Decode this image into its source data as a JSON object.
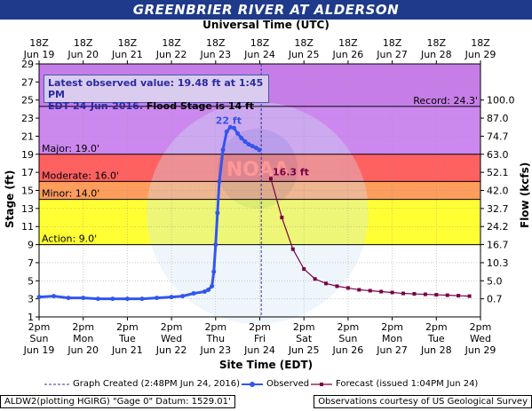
{
  "title": "GREENBRIER RIVER AT ALDERSON",
  "top_axis_title": "Universal Time (UTC)",
  "bottom_axis_title": "Site Time (EDT)",
  "left_axis_title": "Stage (ft)",
  "right_axis_title": "Flow (kcfs)",
  "info": {
    "line1": "Latest observed value: 19.48 ft at 1:45 PM",
    "line2a": "EDT 24-Jun-2016.",
    "line2b": "Flood Stage is 14 ft"
  },
  "legend": {
    "graph_created": "Graph Created (2:48PM Jun 24, 2016)",
    "observed": "Observed",
    "forecast": "Forecast (issued 1:04PM Jun 24)"
  },
  "footer": {
    "left": "ALDW2(plotting HGIRG) \"Gage 0\" Datum: 1529.01'",
    "right": "Observations courtesy of US Geological Survey"
  },
  "watermark": "NATIONAL OCEANIC AND ATMOSPHERIC ADMINISTRATION · U.S. DEPARTMENT OF COMMERCE · NOAA",
  "colors": {
    "record_band": "#cc88ee",
    "major_band": "#ff6060",
    "moderate_band": "#ff9d5c",
    "minor_band": "#ffff33",
    "action_band": "#ffff99",
    "observed": "#3355ee",
    "forecast": "#770044"
  },
  "chart_data": {
    "type": "line",
    "x_days_labels_top": [
      {
        "hour": "18Z",
        "date": "Jun 19"
      },
      {
        "hour": "18Z",
        "date": "Jun 20"
      },
      {
        "hour": "18Z",
        "date": "Jun 21"
      },
      {
        "hour": "18Z",
        "date": "Jun 22"
      },
      {
        "hour": "18Z",
        "date": "Jun 23"
      },
      {
        "hour": "18Z",
        "date": "Jun 24"
      },
      {
        "hour": "18Z",
        "date": "Jun 25"
      },
      {
        "hour": "18Z",
        "date": "Jun 26"
      },
      {
        "hour": "18Z",
        "date": "Jun 27"
      },
      {
        "hour": "18Z",
        "date": "Jun 28"
      },
      {
        "hour": "18Z",
        "date": "Jun 29"
      }
    ],
    "x_days_labels_bottom": [
      {
        "time": "2pm",
        "day": "Sun",
        "date": "Jun 19"
      },
      {
        "time": "2pm",
        "day": "Mon",
        "date": "Jun 20"
      },
      {
        "time": "2pm",
        "day": "Tue",
        "date": "Jun 21"
      },
      {
        "time": "2pm",
        "day": "Wed",
        "date": "Jun 22"
      },
      {
        "time": "2pm",
        "day": "Thu",
        "date": "Jun 23"
      },
      {
        "time": "2pm",
        "day": "Fri",
        "date": "Jun 24"
      },
      {
        "time": "2pm",
        "day": "Sat",
        "date": "Jun 25"
      },
      {
        "time": "2pm",
        "day": "Sun",
        "date": "Jun 26"
      },
      {
        "time": "2pm",
        "day": "Mon",
        "date": "Jun 27"
      },
      {
        "time": "2pm",
        "day": "Tue",
        "date": "Jun 28"
      },
      {
        "time": "2pm",
        "day": "Wed",
        "date": "Jun 29"
      }
    ],
    "xlim": [
      "Jun 19 2pm",
      "Jun 29 2pm"
    ],
    "ylim": [
      1,
      29
    ],
    "y_ticks": [
      1,
      3,
      5,
      7,
      9,
      11,
      13,
      15,
      17,
      19,
      21,
      23,
      25,
      27,
      29
    ],
    "right_ticks": [
      {
        "stage": 25,
        "flow": "100.0"
      },
      {
        "stage": 23,
        "flow": "87.0"
      },
      {
        "stage": 21,
        "flow": "74.7"
      },
      {
        "stage": 19,
        "flow": "63.0"
      },
      {
        "stage": 17,
        "flow": "52.1"
      },
      {
        "stage": 15,
        "flow": "42.0"
      },
      {
        "stage": 13,
        "flow": "32.7"
      },
      {
        "stage": 11,
        "flow": "24.2"
      },
      {
        "stage": 9,
        "flow": "16.7"
      },
      {
        "stage": 7,
        "flow": "10.3"
      },
      {
        "stage": 5,
        "flow": "5.0"
      },
      {
        "stage": 3,
        "flow": "0.7"
      }
    ],
    "thresholds": [
      {
        "name": "Record: 24.3'",
        "value": 24.3
      },
      {
        "name": "Major: 19.0'",
        "value": 19.0
      },
      {
        "name": "Moderate: 16.0'",
        "value": 16.0
      },
      {
        "name": "Minor: 14.0'",
        "value": 14.0
      },
      {
        "name": "Action: 9.0'",
        "value": 9.0
      }
    ],
    "graph_created_x": "Jun 24 2:48pm",
    "series": [
      {
        "name": "Observed",
        "x": [
          "Jun 19 2pm",
          "Jun 19 10pm",
          "Jun 20 6am",
          "Jun 20 2pm",
          "Jun 20 10pm",
          "Jun 21 6am",
          "Jun 21 2pm",
          "Jun 21 10pm",
          "Jun 22 6am",
          "Jun 22 2pm",
          "Jun 22 8pm",
          "Jun 23 2am",
          "Jun 23 8am",
          "Jun 23 10am",
          "Jun 23 12pm",
          "Jun 23 1pm",
          "Jun 23 2pm",
          "Jun 23 3pm",
          "Jun 23 4pm",
          "Jun 23 6pm",
          "Jun 23 8pm",
          "Jun 23 10pm",
          "Jun 24 12am",
          "Jun 24 2am",
          "Jun 24 4am",
          "Jun 24 6am",
          "Jun 24 8am",
          "Jun 24 10am",
          "Jun 24 12pm",
          "Jun 24 1:45pm"
        ],
        "values": [
          3.2,
          3.3,
          3.1,
          3.1,
          3.0,
          3.0,
          3.0,
          3.0,
          3.1,
          3.2,
          3.3,
          3.6,
          3.8,
          4.0,
          4.4,
          6.0,
          9.0,
          12.5,
          16.0,
          19.5,
          21.5,
          22.0,
          21.9,
          21.3,
          20.8,
          20.4,
          20.1,
          19.9,
          19.7,
          19.48
        ]
      },
      {
        "name": "Forecast",
        "x": [
          "Jun 24 8pm",
          "Jun 25 2am",
          "Jun 25 8am",
          "Jun 25 2pm",
          "Jun 25 8pm",
          "Jun 26 2am",
          "Jun 26 8am",
          "Jun 26 2pm",
          "Jun 26 8pm",
          "Jun 27 2am",
          "Jun 27 8am",
          "Jun 27 2pm",
          "Jun 27 8pm",
          "Jun 28 2am",
          "Jun 28 8am",
          "Jun 28 2pm",
          "Jun 28 8pm",
          "Jun 29 2am",
          "Jun 29 8am"
        ],
        "values": [
          16.3,
          12.0,
          8.5,
          6.3,
          5.2,
          4.7,
          4.4,
          4.2,
          4.0,
          3.9,
          3.8,
          3.7,
          3.6,
          3.55,
          3.5,
          3.45,
          3.4,
          3.35,
          3.3
        ]
      }
    ],
    "annotations": [
      {
        "text": "22 ft",
        "x": "Jun 23 10pm",
        "y": 22.0
      },
      {
        "text": "16.3 ft",
        "x": "Jun 24 8pm",
        "y": 16.3
      }
    ]
  }
}
